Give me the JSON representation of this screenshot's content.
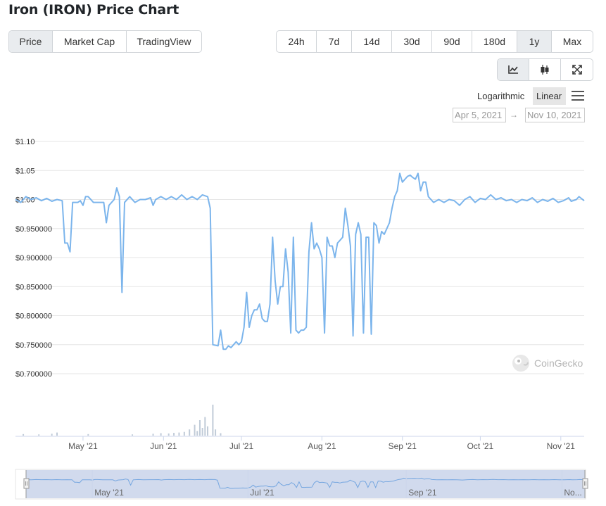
{
  "page": {
    "title": "Iron (IRON) Price Chart"
  },
  "tabs": [
    {
      "label": "Price",
      "active": true
    },
    {
      "label": "Market Cap",
      "active": false
    },
    {
      "label": "TradingView",
      "active": false
    }
  ],
  "ranges": [
    {
      "label": "24h",
      "active": false
    },
    {
      "label": "7d",
      "active": false
    },
    {
      "label": "14d",
      "active": false
    },
    {
      "label": "30d",
      "active": false
    },
    {
      "label": "90d",
      "active": false
    },
    {
      "label": "180d",
      "active": false
    },
    {
      "label": "1y",
      "active": true
    },
    {
      "label": "Max",
      "active": false
    }
  ],
  "chart_types": [
    {
      "icon": "line-chart-icon",
      "active": true
    },
    {
      "icon": "candlestick-icon",
      "active": false
    },
    {
      "icon": "expand-icon",
      "active": false
    }
  ],
  "scale": {
    "logarithmic": "Logarithmic",
    "linear": "Linear",
    "selected": "Linear"
  },
  "date_range": {
    "from": "Apr 5, 2021",
    "to": "Nov 10, 2021",
    "separator": "→"
  },
  "watermark": "CoinGecko",
  "chart_data": {
    "type": "line",
    "title": "",
    "xlabel": "",
    "ylabel": "",
    "ylim": [
      0.7,
      1.1
    ],
    "y_ticks": [
      {
        "v": 1.1,
        "label": "$1.10"
      },
      {
        "v": 1.05,
        "label": "$1.05"
      },
      {
        "v": 1.0,
        "label": "$1.00"
      },
      {
        "v": 0.95,
        "label": "$0.950000"
      },
      {
        "v": 0.9,
        "label": "$0.900000"
      },
      {
        "v": 0.85,
        "label": "$0.850000"
      },
      {
        "v": 0.8,
        "label": "$0.800000"
      },
      {
        "v": 0.75,
        "label": "$0.750000"
      },
      {
        "v": 0.7,
        "label": "$0.700000"
      }
    ],
    "x_range": [
      "2021-04-05",
      "2021-11-10"
    ],
    "x_ticks": [
      {
        "date": "2021-05-01",
        "label": "May '21"
      },
      {
        "date": "2021-06-01",
        "label": "Jun '21"
      },
      {
        "date": "2021-07-01",
        "label": "Jul '21"
      },
      {
        "date": "2021-08-01",
        "label": "Aug '21"
      },
      {
        "date": "2021-09-01",
        "label": "Sep '21"
      },
      {
        "date": "2021-10-01",
        "label": "Oct '21"
      },
      {
        "date": "2021-11-01",
        "label": "Nov '21"
      }
    ],
    "navigator_ticks": [
      {
        "date": "2021-05-01",
        "label": "May '21"
      },
      {
        "date": "2021-07-01",
        "label": "Jul '21"
      },
      {
        "date": "2021-09-01",
        "label": "Sep '21"
      },
      {
        "date": "2021-11-01",
        "label": "No..."
      }
    ],
    "series": [
      {
        "line_color": "#7cb5ec",
        "points": [
          [
            "2021-04-05",
            1.0
          ],
          [
            "2021-04-07",
            0.995
          ],
          [
            "2021-04-09",
            1.005
          ],
          [
            "2021-04-11",
            1.0
          ],
          [
            "2021-04-13",
            1.003
          ],
          [
            "2021-04-15",
            0.998
          ],
          [
            "2021-04-17",
            1.002
          ],
          [
            "2021-04-19",
            0.997
          ],
          [
            "2021-04-21",
            1.0
          ],
          [
            "2021-04-23",
            0.998
          ],
          [
            "2021-04-24",
            0.925
          ],
          [
            "2021-04-25",
            0.925
          ],
          [
            "2021-04-26",
            0.91
          ],
          [
            "2021-04-27",
            0.995
          ],
          [
            "2021-04-29",
            0.995
          ],
          [
            "2021-04-30",
            0.998
          ],
          [
            "2021-05-01",
            0.99
          ],
          [
            "2021-05-02",
            1.005
          ],
          [
            "2021-05-03",
            1.005
          ],
          [
            "2021-05-05",
            0.995
          ],
          [
            "2021-05-07",
            0.995
          ],
          [
            "2021-05-09",
            0.995
          ],
          [
            "2021-05-10",
            0.96
          ],
          [
            "2021-05-11",
            0.99
          ],
          [
            "2021-05-13",
            1.0
          ],
          [
            "2021-05-14",
            1.02
          ],
          [
            "2021-05-15",
            1.005
          ],
          [
            "2021-05-16",
            0.84
          ],
          [
            "2021-05-17",
            0.995
          ],
          [
            "2021-05-19",
            1.005
          ],
          [
            "2021-05-21",
            0.995
          ],
          [
            "2021-05-23",
            1.0
          ],
          [
            "2021-05-25",
            1.0
          ],
          [
            "2021-05-27",
            1.003
          ],
          [
            "2021-05-28",
            0.99
          ],
          [
            "2021-05-29",
            1.0
          ],
          [
            "2021-05-31",
            1.005
          ],
          [
            "2021-06-02",
            1.0
          ],
          [
            "2021-06-04",
            1.005
          ],
          [
            "2021-06-06",
            1.0
          ],
          [
            "2021-06-08",
            1.008
          ],
          [
            "2021-06-10",
            1.0
          ],
          [
            "2021-06-12",
            1.005
          ],
          [
            "2021-06-14",
            1.0
          ],
          [
            "2021-06-16",
            1.008
          ],
          [
            "2021-06-18",
            1.005
          ],
          [
            "2021-06-19",
            0.985
          ],
          [
            "2021-06-20",
            0.75
          ],
          [
            "2021-06-22",
            0.748
          ],
          [
            "2021-06-23",
            0.775
          ],
          [
            "2021-06-24",
            0.742
          ],
          [
            "2021-06-25",
            0.742
          ],
          [
            "2021-06-26",
            0.748
          ],
          [
            "2021-06-27",
            0.745
          ],
          [
            "2021-06-29",
            0.755
          ],
          [
            "2021-06-30",
            0.75
          ],
          [
            "2021-07-01",
            0.755
          ],
          [
            "2021-07-02",
            0.78
          ],
          [
            "2021-07-03",
            0.84
          ],
          [
            "2021-07-04",
            0.78
          ],
          [
            "2021-07-05",
            0.8
          ],
          [
            "2021-07-06",
            0.81
          ],
          [
            "2021-07-07",
            0.81
          ],
          [
            "2021-07-08",
            0.82
          ],
          [
            "2021-07-09",
            0.795
          ],
          [
            "2021-07-10",
            0.79
          ],
          [
            "2021-07-11",
            0.79
          ],
          [
            "2021-07-12",
            0.82
          ],
          [
            "2021-07-13",
            0.935
          ],
          [
            "2021-07-14",
            0.86
          ],
          [
            "2021-07-15",
            0.82
          ],
          [
            "2021-07-16",
            0.85
          ],
          [
            "2021-07-17",
            0.85
          ],
          [
            "2021-07-18",
            0.915
          ],
          [
            "2021-07-19",
            0.875
          ],
          [
            "2021-07-20",
            0.77
          ],
          [
            "2021-07-21",
            0.935
          ],
          [
            "2021-07-22",
            0.775
          ],
          [
            "2021-07-23",
            0.77
          ],
          [
            "2021-07-24",
            0.775
          ],
          [
            "2021-07-25",
            0.775
          ],
          [
            "2021-07-26",
            0.78
          ],
          [
            "2021-07-27",
            0.91
          ],
          [
            "2021-07-28",
            0.96
          ],
          [
            "2021-07-29",
            0.915
          ],
          [
            "2021-07-30",
            0.925
          ],
          [
            "2021-07-31",
            0.915
          ],
          [
            "2021-08-01",
            0.9
          ],
          [
            "2021-08-02",
            0.77
          ],
          [
            "2021-08-03",
            0.935
          ],
          [
            "2021-08-04",
            0.92
          ],
          [
            "2021-08-05",
            0.92
          ],
          [
            "2021-08-06",
            0.9
          ],
          [
            "2021-08-07",
            0.925
          ],
          [
            "2021-08-08",
            0.93
          ],
          [
            "2021-08-09",
            0.935
          ],
          [
            "2021-08-10",
            0.985
          ],
          [
            "2021-08-11",
            0.955
          ],
          [
            "2021-08-12",
            0.92
          ],
          [
            "2021-08-13",
            0.765
          ],
          [
            "2021-08-14",
            0.94
          ],
          [
            "2021-08-15",
            0.96
          ],
          [
            "2021-08-16",
            0.94
          ],
          [
            "2021-08-17",
            0.77
          ],
          [
            "2021-08-18",
            0.935
          ],
          [
            "2021-08-19",
            0.935
          ],
          [
            "2021-08-20",
            0.768
          ],
          [
            "2021-08-21",
            0.96
          ],
          [
            "2021-08-22",
            0.955
          ],
          [
            "2021-08-23",
            0.925
          ],
          [
            "2021-08-24",
            0.945
          ],
          [
            "2021-08-25",
            0.94
          ],
          [
            "2021-08-26",
            0.95
          ],
          [
            "2021-08-27",
            0.96
          ],
          [
            "2021-08-28",
            0.985
          ],
          [
            "2021-08-29",
            1.005
          ],
          [
            "2021-08-30",
            1.015
          ],
          [
            "2021-08-31",
            1.045
          ],
          [
            "2021-09-01",
            1.03
          ],
          [
            "2021-09-02",
            1.035
          ],
          [
            "2021-09-03",
            1.04
          ],
          [
            "2021-09-04",
            1.042
          ],
          [
            "2021-09-05",
            1.038
          ],
          [
            "2021-09-06",
            1.035
          ],
          [
            "2021-09-07",
            1.045
          ],
          [
            "2021-09-08",
            1.015
          ],
          [
            "2021-09-09",
            1.03
          ],
          [
            "2021-09-10",
            1.03
          ],
          [
            "2021-09-11",
            1.005
          ],
          [
            "2021-09-13",
            0.995
          ],
          [
            "2021-09-15",
            1.0
          ],
          [
            "2021-09-17",
            0.995
          ],
          [
            "2021-09-19",
            1.0
          ],
          [
            "2021-09-21",
            0.998
          ],
          [
            "2021-09-23",
            0.99
          ],
          [
            "2021-09-25",
            1.0
          ],
          [
            "2021-09-27",
            1.005
          ],
          [
            "2021-09-29",
            0.995
          ],
          [
            "2021-10-01",
            1.002
          ],
          [
            "2021-10-03",
            1.0
          ],
          [
            "2021-10-05",
            1.008
          ],
          [
            "2021-10-07",
            1.0
          ],
          [
            "2021-10-09",
            1.003
          ],
          [
            "2021-10-11",
            0.998
          ],
          [
            "2021-10-13",
            1.0
          ],
          [
            "2021-10-15",
            0.995
          ],
          [
            "2021-10-17",
            1.0
          ],
          [
            "2021-10-19",
            0.998
          ],
          [
            "2021-10-21",
            1.003
          ],
          [
            "2021-10-23",
            0.995
          ],
          [
            "2021-10-25",
            1.0
          ],
          [
            "2021-10-27",
            0.997
          ],
          [
            "2021-10-29",
            1.002
          ],
          [
            "2021-10-31",
            0.995
          ],
          [
            "2021-11-02",
            0.998
          ],
          [
            "2021-11-04",
            1.003
          ],
          [
            "2021-11-05",
            0.997
          ],
          [
            "2021-11-07",
            1.0
          ],
          [
            "2021-11-08",
            1.005
          ],
          [
            "2021-11-10",
            0.998
          ]
        ]
      }
    ],
    "volume": {
      "bar_color": "#c0cbd8",
      "bars": [
        [
          "2021-04-08",
          0.05
        ],
        [
          "2021-04-14",
          0.04
        ],
        [
          "2021-04-19",
          0.06
        ],
        [
          "2021-04-21",
          0.1
        ],
        [
          "2021-05-03",
          0.05
        ],
        [
          "2021-05-20",
          0.04
        ],
        [
          "2021-05-28",
          0.06
        ],
        [
          "2021-05-31",
          0.08
        ],
        [
          "2021-06-03",
          0.07
        ],
        [
          "2021-06-05",
          0.09
        ],
        [
          "2021-06-07",
          0.1
        ],
        [
          "2021-06-09",
          0.12
        ],
        [
          "2021-06-11",
          0.2
        ],
        [
          "2021-06-13",
          0.35
        ],
        [
          "2021-06-14",
          0.15
        ],
        [
          "2021-06-15",
          0.5
        ],
        [
          "2021-06-16",
          0.25
        ],
        [
          "2021-06-17",
          0.6
        ],
        [
          "2021-06-18",
          0.3
        ],
        [
          "2021-06-20",
          1.0
        ],
        [
          "2021-06-21",
          0.2
        ],
        [
          "2021-06-23",
          0.08
        ]
      ]
    }
  }
}
